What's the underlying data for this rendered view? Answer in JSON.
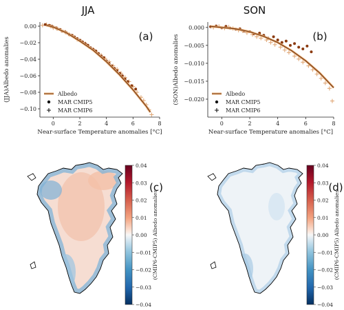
{
  "chart_data": [
    {
      "type": "scatter",
      "title": "JJA",
      "panel_label": "(a)",
      "xlabel": "Near-surface Temperature anomalies [°C]",
      "ylabel": "(JJA)Albedo anomalies",
      "xlim": [
        -1,
        8
      ],
      "ylim": [
        -0.11,
        0.005
      ],
      "xticks": [
        0,
        2,
        4,
        6,
        8
      ],
      "yticks": [
        0.0,
        -0.02,
        -0.04,
        -0.06,
        -0.08,
        -0.1
      ],
      "ytick_labels": [
        "0.00",
        "−0.02",
        "−0.04",
        "−0.06",
        "−0.08",
        "−0.10"
      ],
      "grid": false,
      "legend_position": "lower-left",
      "legend": [
        "Albedo",
        "MAR CMIP5",
        "MAR CMIP6"
      ],
      "series": [
        {
          "name": "Albedo",
          "kind": "fit",
          "x": [
            -0.5,
            0,
            1,
            2,
            3,
            4,
            5,
            6,
            7,
            7.3
          ],
          "y": [
            0.001,
            -0.001,
            -0.008,
            -0.018,
            -0.029,
            -0.043,
            -0.059,
            -0.077,
            -0.097,
            -0.104
          ]
        },
        {
          "name": "MAR CMIP5",
          "kind": "dot",
          "x": [
            -0.6,
            -0.3,
            -0.1,
            0.0,
            0.2,
            0.3,
            0.5,
            0.7,
            0.9,
            1.0,
            1.2,
            1.4,
            1.6,
            1.8,
            2.0,
            2.2,
            2.4,
            2.6,
            2.8,
            3.0,
            3.2,
            3.4,
            3.6,
            3.8,
            4.0,
            4.2,
            4.4,
            4.6,
            4.8,
            5.0,
            5.2,
            5.4,
            5.6,
            5.9,
            6.2
          ],
          "y": [
            0.002,
            0.001,
            0.0,
            -0.001,
            -0.002,
            -0.003,
            -0.004,
            -0.006,
            -0.007,
            -0.008,
            -0.01,
            -0.011,
            -0.013,
            -0.015,
            -0.017,
            -0.019,
            -0.021,
            -0.023,
            -0.026,
            -0.028,
            -0.03,
            -0.033,
            -0.036,
            -0.038,
            -0.042,
            -0.045,
            -0.048,
            -0.051,
            -0.054,
            -0.057,
            -0.06,
            -0.064,
            -0.067,
            -0.072,
            -0.076
          ]
        },
        {
          "name": "MAR CMIP6",
          "kind": "plus",
          "x": [
            -0.8,
            -0.5,
            -0.2,
            0.0,
            0.3,
            0.6,
            0.9,
            1.2,
            1.5,
            1.8,
            2.1,
            2.4,
            2.7,
            3.0,
            3.3,
            3.6,
            3.9,
            4.2,
            4.5,
            4.8,
            5.1,
            5.4,
            5.7,
            6.0,
            6.3,
            6.6,
            6.8,
            7.0,
            7.2,
            7.4
          ],
          "y": [
            0.001,
            0.002,
            0.0,
            -0.002,
            -0.003,
            -0.005,
            -0.007,
            -0.01,
            -0.012,
            -0.016,
            -0.018,
            -0.021,
            -0.025,
            -0.028,
            -0.032,
            -0.035,
            -0.039,
            -0.043,
            -0.048,
            -0.052,
            -0.057,
            -0.062,
            -0.067,
            -0.073,
            -0.08,
            -0.086,
            -0.09,
            -0.095,
            -0.101,
            -0.107
          ]
        }
      ]
    },
    {
      "type": "scatter",
      "title": "SON",
      "panel_label": "(b)",
      "xlabel": "Near-surface Temperature anomalies [°C]",
      "ylabel": "(SON)Albedo anomalies",
      "xlim": [
        -1,
        8
      ],
      "ylim": [
        -0.025,
        0.0015
      ],
      "xticks": [
        0,
        2,
        4,
        6,
        8
      ],
      "yticks": [
        0.0,
        -0.005,
        -0.01,
        -0.015,
        -0.02
      ],
      "ytick_labels": [
        "0.000",
        "−0.005",
        "−0.010",
        "−0.015",
        "−0.020"
      ],
      "grid": false,
      "legend_position": "lower-left",
      "legend": [
        "Albedo",
        "MAR CMIP5",
        "MAR CMIP6"
      ],
      "series": [
        {
          "name": "Albedo",
          "kind": "fit",
          "x": [
            -0.8,
            0,
            1,
            2,
            3,
            4,
            5,
            6,
            7,
            8
          ],
          "y": [
            0.0003,
            0.0,
            -0.0004,
            -0.0012,
            -0.0025,
            -0.0042,
            -0.0065,
            -0.0093,
            -0.0127,
            -0.0168
          ]
        },
        {
          "name": "MAR CMIP5",
          "kind": "dot",
          "x": [
            -0.8,
            -0.4,
            0.0,
            0.3,
            0.6,
            1.0,
            1.3,
            1.6,
            2.0,
            2.3,
            2.7,
            3.0,
            3.3,
            3.7,
            4.0,
            4.3,
            4.6,
            4.9,
            5.2,
            5.5,
            5.8,
            6.1,
            6.4
          ],
          "y": [
            0.0002,
            0.0004,
            -0.0001,
            0.0003,
            -0.0002,
            -0.0005,
            -0.0004,
            -0.001,
            -0.0012,
            -0.0018,
            -0.0016,
            -0.0022,
            -0.003,
            -0.0026,
            -0.0035,
            -0.0042,
            -0.0038,
            -0.005,
            -0.0045,
            -0.0055,
            -0.006,
            -0.0052,
            -0.0068
          ]
        },
        {
          "name": "MAR CMIP6",
          "kind": "plus",
          "x": [
            -0.6,
            -0.2,
            0.2,
            0.5,
            0.8,
            1.2,
            1.5,
            1.8,
            2.2,
            2.5,
            2.8,
            3.2,
            3.5,
            3.8,
            4.2,
            4.5,
            4.8,
            5.2,
            5.5,
            5.8,
            6.2,
            6.5,
            6.8,
            7.1,
            7.4,
            7.7,
            7.9
          ],
          "y": [
            0.0,
            0.0003,
            -0.0002,
            0.0001,
            -0.0003,
            -0.0008,
            -0.001,
            -0.0015,
            -0.002,
            -0.0026,
            -0.003,
            -0.0035,
            -0.0042,
            -0.0048,
            -0.0055,
            -0.0063,
            -0.007,
            -0.008,
            -0.0088,
            -0.0097,
            -0.0107,
            -0.0118,
            -0.013,
            -0.0142,
            -0.0155,
            -0.017,
            -0.0205
          ]
        }
      ]
    },
    {
      "type": "heatmap",
      "panel_label": "(c)",
      "colorbar_label": "(CMIP6-CMIP5) Albedo anomalies",
      "clim": [
        -0.04,
        0.04
      ],
      "colorbar_ticks": [
        "0.04",
        "0.03",
        "0.02",
        "0.01",
        "0.00",
        "−0.01",
        "−0.02",
        "−0.03",
        "−0.04"
      ],
      "colormap": "RdBu_r"
    },
    {
      "type": "heatmap",
      "panel_label": "(d)",
      "colorbar_label": "(CMIP6-CMIP5) Albedo anomalies",
      "clim": [
        -0.04,
        0.04
      ],
      "colorbar_ticks": [
        "0.04",
        "0.03",
        "0.02",
        "0.01",
        "0.00",
        "−0.01",
        "−0.02",
        "−0.03",
        "−0.04"
      ],
      "colormap": "RdBu_r"
    }
  ],
  "colors": {
    "fit_outer": "#e8b07a",
    "fit_inner": "#7a3c14",
    "cmip5": "#8b3a0f",
    "cmip6": "#e0a878",
    "coast": "#000000"
  }
}
